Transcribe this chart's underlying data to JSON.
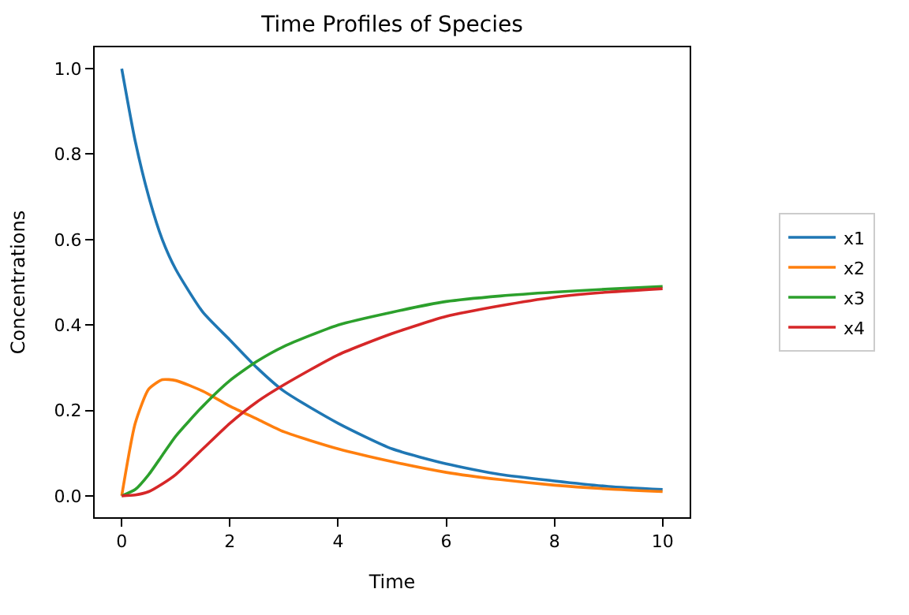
{
  "chart_data": {
    "type": "line",
    "title": "Time Profiles of Species",
    "xlabel": "Time",
    "ylabel": "Concentrations",
    "x": [
      0,
      0.25,
      0.5,
      0.75,
      1,
      1.5,
      2,
      2.5,
      3,
      4,
      5,
      6,
      7,
      8,
      9,
      10
    ],
    "series": [
      {
        "name": "x1",
        "color": "#1f77b4",
        "values": [
          1.0,
          0.83,
          0.7,
          0.6,
          0.53,
          0.43,
          0.365,
          0.3,
          0.245,
          0.17,
          0.11,
          0.075,
          0.05,
          0.035,
          0.022,
          0.015
        ]
      },
      {
        "name": "x2",
        "color": "#ff7f0e",
        "values": [
          0,
          0.17,
          0.25,
          0.272,
          0.27,
          0.245,
          0.21,
          0.18,
          0.15,
          0.11,
          0.08,
          0.055,
          0.038,
          0.025,
          0.016,
          0.01
        ]
      },
      {
        "name": "x3",
        "color": "#2ca02c",
        "values": [
          0,
          0.015,
          0.05,
          0.095,
          0.14,
          0.21,
          0.27,
          0.315,
          0.35,
          0.4,
          0.43,
          0.455,
          0.468,
          0.477,
          0.484,
          0.49
        ]
      },
      {
        "name": "x4",
        "color": "#d62728",
        "values": [
          0,
          0.002,
          0.01,
          0.028,
          0.05,
          0.11,
          0.17,
          0.22,
          0.26,
          0.33,
          0.38,
          0.42,
          0.445,
          0.465,
          0.477,
          0.485
        ]
      }
    ],
    "xlim": [
      -0.5,
      10.5
    ],
    "ylim": [
      -0.05,
      1.05
    ],
    "xticks": [
      0,
      2,
      4,
      6,
      8,
      10
    ],
    "yticks": [
      {
        "value": 0,
        "label": "0.0"
      },
      {
        "value": 0.2,
        "label": "0.2"
      },
      {
        "value": 0.4,
        "label": "0.4"
      },
      {
        "value": 0.6,
        "label": "0.6"
      },
      {
        "value": 0.8,
        "label": "0.8"
      },
      {
        "value": 1.0,
        "label": "1.0"
      }
    ],
    "legend": "right",
    "marker": "none",
    "line_style": "solid"
  }
}
